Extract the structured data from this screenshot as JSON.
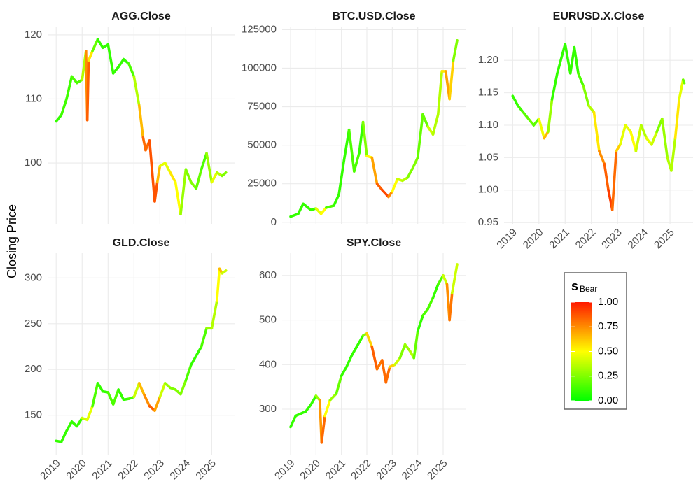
{
  "ylabel": "Closing Price",
  "colorbar": {
    "title": "s",
    "title_sub": "Bear",
    "lim": [
      0,
      1
    ],
    "colors": [
      "#00ff00",
      "#ffff00",
      "#ff1a00"
    ],
    "ticks": [
      {
        "value": 1,
        "label": "1.00"
      },
      {
        "value": 0.75,
        "label": "0.75"
      },
      {
        "value": 0.5,
        "label": "0.50"
      },
      {
        "value": 0.25,
        "label": "0.25"
      },
      {
        "value": 0,
        "label": "0.00"
      }
    ]
  },
  "chart_data": [
    {
      "type": "line",
      "title": "AGG.Close",
      "xtick_labels": false,
      "grid": true,
      "xlim": [
        2018.67,
        2025.88
      ],
      "ylim": [
        90.5,
        121.3
      ],
      "xticks": [
        2019,
        2020,
        2021,
        2022,
        2023,
        2024,
        2025
      ],
      "yticks": [
        100,
        110,
        120
      ],
      "x": [
        2019.0,
        2019.2,
        2019.4,
        2019.6,
        2019.8,
        2020.0,
        2020.15,
        2020.2,
        2020.25,
        2020.4,
        2020.6,
        2020.8,
        2021.0,
        2021.2,
        2021.4,
        2021.6,
        2021.8,
        2022.0,
        2022.2,
        2022.35,
        2022.45,
        2022.6,
        2022.8,
        2022.9,
        2023.0,
        2023.2,
        2023.4,
        2023.6,
        2023.8,
        2024.0,
        2024.2,
        2024.4,
        2024.6,
        2024.8,
        2025.0,
        2025.2,
        2025.4,
        2025.55
      ],
      "values": [
        106.5,
        107.5,
        110,
        113.5,
        112.5,
        113,
        117.5,
        106.7,
        116,
        117.5,
        119.3,
        118,
        118.5,
        114,
        115,
        116.2,
        115.5,
        113.5,
        109,
        104,
        102,
        103.5,
        94,
        97,
        99.5,
        100,
        98.5,
        97,
        92,
        99,
        97,
        96,
        99,
        101.5,
        97,
        98.5,
        98,
        98.5
      ],
      "bear": [
        0.1,
        0.1,
        0.15,
        0.1,
        0.2,
        0.1,
        0.6,
        0.9,
        0.8,
        0.3,
        0.1,
        0.1,
        0.1,
        0.1,
        0.1,
        0.1,
        0.1,
        0.2,
        0.5,
        0.8,
        0.85,
        0.8,
        0.95,
        0.8,
        0.5,
        0.4,
        0.5,
        0.6,
        0.4,
        0.2,
        0.3,
        0.2,
        0.2,
        0.1,
        0.5,
        0.4,
        0.3,
        0.2
      ]
    },
    {
      "type": "line",
      "title": "BTC.USD.Close",
      "xtick_labels": false,
      "grid": true,
      "xlim": [
        2018.67,
        2025.88
      ],
      "ylim": [
        -1000,
        127000
      ],
      "xticks": [
        2019,
        2020,
        2021,
        2022,
        2023,
        2024,
        2025
      ],
      "yticks": [
        0,
        25000,
        50000,
        75000,
        100000,
        125000
      ],
      "x": [
        2019.0,
        2019.3,
        2019.5,
        2019.8,
        2020.0,
        2020.2,
        2020.4,
        2020.7,
        2020.9,
        2021.1,
        2021.3,
        2021.5,
        2021.7,
        2021.85,
        2022.0,
        2022.2,
        2022.4,
        2022.6,
        2022.85,
        2023.0,
        2023.2,
        2023.4,
        2023.6,
        2023.8,
        2024.0,
        2024.2,
        2024.4,
        2024.6,
        2024.8,
        2024.95,
        2025.1,
        2025.25,
        2025.4,
        2025.55
      ],
      "values": [
        3700,
        5500,
        12000,
        8000,
        9000,
        5500,
        9500,
        10800,
        18000,
        40000,
        60000,
        33000,
        45000,
        65000,
        43000,
        42000,
        25000,
        21000,
        16500,
        20000,
        28000,
        27000,
        29000,
        35000,
        42000,
        70000,
        62000,
        57000,
        70000,
        98000,
        98000,
        80000,
        105000,
        118000
      ],
      "bear": [
        0.1,
        0.1,
        0.1,
        0.1,
        0.1,
        0.8,
        0.2,
        0.1,
        0.1,
        0.1,
        0.1,
        0.2,
        0.1,
        0.1,
        0.4,
        0.6,
        0.8,
        0.9,
        0.9,
        0.6,
        0.4,
        0.4,
        0.3,
        0.2,
        0.3,
        0.1,
        0.3,
        0.5,
        0.2,
        0.5,
        0.6,
        0.8,
        0.4,
        0.1
      ]
    },
    {
      "type": "line",
      "title": "EURUSD.X.Close",
      "xtick_labels": true,
      "grid": true,
      "xlim": [
        2018.67,
        2025.88
      ],
      "ylim": [
        0.948,
        1.252
      ],
      "xticks": [
        2019,
        2020,
        2021,
        2022,
        2023,
        2024,
        2025
      ],
      "yticks": [
        {
          "value": 0.95,
          "label": "0.95"
        },
        {
          "value": 1,
          "label": "1.00"
        },
        {
          "value": 1.05,
          "label": "1.05"
        },
        {
          "value": 1.1,
          "label": "1.10"
        },
        {
          "value": 1.15,
          "label": "1.15"
        },
        {
          "value": 1.2,
          "label": "1.20"
        }
      ],
      "x": [
        2019.0,
        2019.2,
        2019.4,
        2019.6,
        2019.8,
        2020.0,
        2020.2,
        2020.35,
        2020.5,
        2020.7,
        2020.9,
        2021.0,
        2021.2,
        2021.35,
        2021.5,
        2021.7,
        2021.9,
        2022.1,
        2022.3,
        2022.5,
        2022.65,
        2022.8,
        2022.95,
        2023.1,
        2023.3,
        2023.5,
        2023.7,
        2023.9,
        2024.1,
        2024.3,
        2024.5,
        2024.7,
        2024.9,
        2025.05,
        2025.2,
        2025.35,
        2025.5,
        2025.55
      ],
      "values": [
        1.145,
        1.13,
        1.12,
        1.11,
        1.1,
        1.11,
        1.08,
        1.09,
        1.14,
        1.18,
        1.21,
        1.225,
        1.18,
        1.22,
        1.18,
        1.16,
        1.13,
        1.12,
        1.06,
        1.04,
        1.0,
        0.97,
        1.06,
        1.07,
        1.1,
        1.09,
        1.06,
        1.1,
        1.08,
        1.07,
        1.09,
        1.11,
        1.05,
        1.03,
        1.08,
        1.14,
        1.17,
        1.165
      ],
      "bear": [
        0.1,
        0.1,
        0.15,
        0.2,
        0.2,
        0.15,
        0.8,
        0.5,
        0.1,
        0.1,
        0.1,
        0.1,
        0.1,
        0.1,
        0.1,
        0.2,
        0.3,
        0.4,
        0.7,
        0.8,
        0.9,
        0.95,
        0.7,
        0.5,
        0.4,
        0.5,
        0.5,
        0.3,
        0.4,
        0.5,
        0.3,
        0.2,
        0.4,
        0.3,
        0.4,
        0.7,
        0.2,
        0.2
      ]
    },
    {
      "type": "line",
      "title": "GLD.Close",
      "xtick_labels": true,
      "grid": true,
      "xlim": [
        2018.67,
        2025.88
      ],
      "ylim": [
        107,
        327
      ],
      "xticks": [
        2019,
        2020,
        2021,
        2022,
        2023,
        2024,
        2025
      ],
      "yticks": [
        150,
        200,
        250,
        300
      ],
      "x": [
        2019.0,
        2019.2,
        2019.4,
        2019.6,
        2019.8,
        2020.0,
        2020.2,
        2020.4,
        2020.6,
        2020.8,
        2021.0,
        2021.2,
        2021.4,
        2021.6,
        2021.8,
        2022.0,
        2022.2,
        2022.4,
        2022.6,
        2022.8,
        2023.0,
        2023.2,
        2023.4,
        2023.6,
        2023.8,
        2024.0,
        2024.2,
        2024.4,
        2024.6,
        2024.8,
        2025.0,
        2025.2,
        2025.3,
        2025.4,
        2025.55
      ],
      "values": [
        122,
        121,
        133,
        143,
        138,
        147,
        145,
        160,
        185,
        176,
        175,
        162,
        178,
        167,
        168,
        170,
        185,
        172,
        160,
        155,
        170,
        185,
        180,
        178,
        173,
        188,
        205,
        215,
        225,
        245,
        245,
        275,
        310,
        305,
        308
      ],
      "bear": [
        0.1,
        0.1,
        0.1,
        0.1,
        0.1,
        0.1,
        0.7,
        0.2,
        0.1,
        0.1,
        0.1,
        0.2,
        0.1,
        0.1,
        0.1,
        0.2,
        0.6,
        0.7,
        0.8,
        0.9,
        0.5,
        0.3,
        0.3,
        0.2,
        0.3,
        0.2,
        0.1,
        0.1,
        0.1,
        0.2,
        0.4,
        0.3,
        0.7,
        0.6,
        0.2
      ]
    },
    {
      "type": "line",
      "title": "SPY.Close",
      "xtick_labels": true,
      "grid": true,
      "xlim": [
        2018.67,
        2025.88
      ],
      "ylim": [
        198,
        650
      ],
      "xticks": [
        2019,
        2020,
        2021,
        2022,
        2023,
        2024,
        2025
      ],
      "yticks": [
        300,
        400,
        500,
        600
      ],
      "x": [
        2019.0,
        2019.2,
        2019.4,
        2019.6,
        2019.8,
        2020.0,
        2020.15,
        2020.22,
        2020.35,
        2020.55,
        2020.8,
        2021.0,
        2021.2,
        2021.4,
        2021.6,
        2021.85,
        2022.0,
        2022.2,
        2022.4,
        2022.6,
        2022.75,
        2022.9,
        2023.1,
        2023.3,
        2023.5,
        2023.7,
        2023.85,
        2024.0,
        2024.2,
        2024.4,
        2024.6,
        2024.8,
        2025.0,
        2025.15,
        2025.25,
        2025.35,
        2025.55
      ],
      "values": [
        260,
        285,
        290,
        295,
        310,
        330,
        320,
        225,
        285,
        320,
        335,
        375,
        395,
        420,
        440,
        465,
        470,
        440,
        390,
        410,
        360,
        395,
        400,
        415,
        445,
        430,
        415,
        475,
        510,
        525,
        550,
        580,
        600,
        580,
        500,
        560,
        625
      ],
      "bear": [
        0.1,
        0.1,
        0.1,
        0.1,
        0.1,
        0.1,
        0.5,
        0.95,
        0.7,
        0.3,
        0.3,
        0.1,
        0.1,
        0.1,
        0.1,
        0.1,
        0.4,
        0.8,
        0.9,
        0.7,
        0.95,
        0.7,
        0.5,
        0.3,
        0.2,
        0.4,
        0.3,
        0.1,
        0.1,
        0.2,
        0.1,
        0.1,
        0.2,
        0.6,
        0.9,
        0.7,
        0.1
      ]
    }
  ]
}
